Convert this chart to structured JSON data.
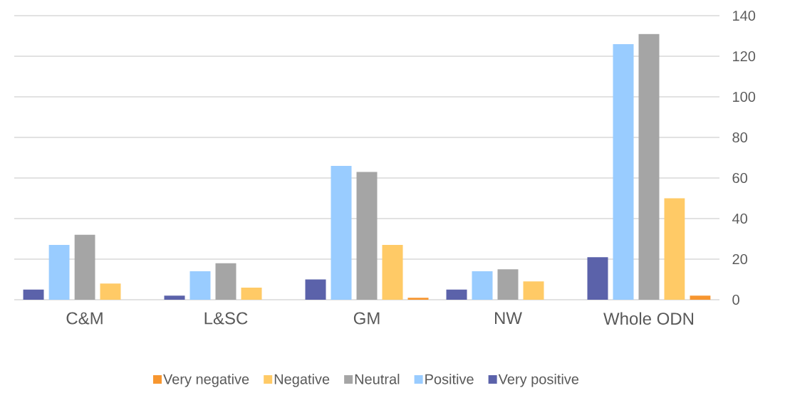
{
  "chart_data": {
    "type": "bar",
    "categories": [
      "C&M",
      "L&SC",
      "GM",
      "NW",
      "Whole ODN"
    ],
    "series": [
      {
        "name": "Very negative",
        "color": "#f7962f",
        "values": [
          0,
          0,
          1,
          0,
          2
        ]
      },
      {
        "name": "Negative",
        "color": "#ffca66",
        "values": [
          8,
          6,
          27,
          9,
          50
        ]
      },
      {
        "name": "Neutral",
        "color": "#a5a5a5",
        "values": [
          32,
          18,
          63,
          15,
          131
        ]
      },
      {
        "name": "Positive",
        "color": "#99ccff",
        "values": [
          27,
          14,
          66,
          14,
          126
        ]
      },
      {
        "name": "Very positive",
        "color": "#5b62aa",
        "values": [
          5,
          2,
          10,
          5,
          21
        ]
      }
    ],
    "ylim": [
      0,
      140
    ],
    "yticks": [
      0,
      20,
      40,
      60,
      80,
      100,
      120,
      140
    ],
    "grid": "y",
    "legend": "bottom"
  }
}
